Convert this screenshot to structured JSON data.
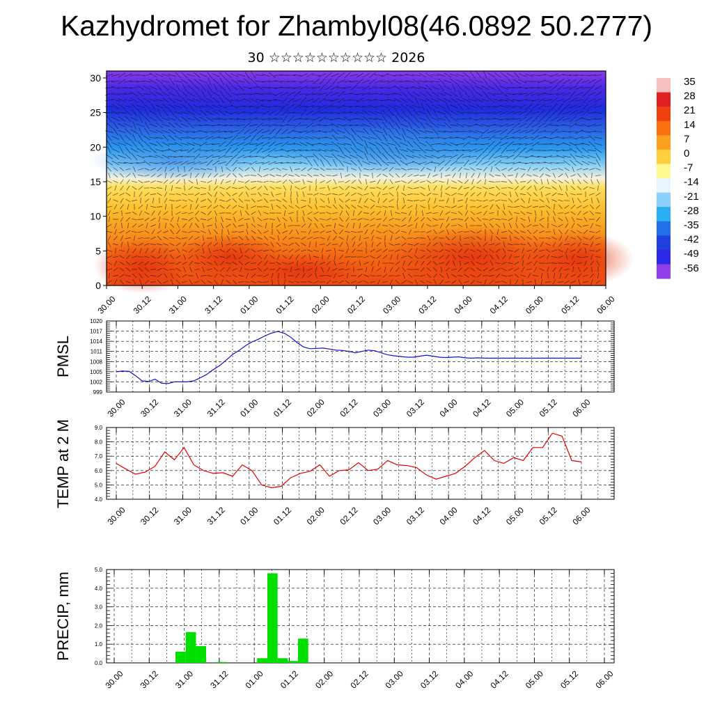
{
  "title": "Kazhydromet for Zhambyl08(46.0892 50.2777)",
  "subtitle": "30 ☆☆☆☆☆☆☆☆☆☆ 2026",
  "time_ticks": [
    "30.00",
    "30.12",
    "31.00",
    "31.12",
    "01.00",
    "01.12",
    "02.00",
    "02.12",
    "03.00",
    "03.12",
    "04.00",
    "04.12",
    "05.00",
    "05.12",
    "06.00"
  ],
  "colors": {
    "pmsl": "#1010cc",
    "temp": "#e00000",
    "precip": "#00e000"
  },
  "chart_data": [
    {
      "type": "heatmap",
      "name": "cross-section",
      "ylabel": "",
      "ylim": [
        0,
        31
      ],
      "yticks": [
        "0",
        "5",
        "10",
        "15",
        "20",
        "25",
        "30"
      ],
      "colorbar_labels": [
        "35",
        "28",
        "21",
        "14",
        "7",
        "0",
        "-7",
        "-14",
        "-21",
        "-28",
        "-35",
        "-42",
        "-49",
        "-56"
      ],
      "colorbar_colors": [
        "#f4c0c0",
        "#e02020",
        "#f04010",
        "#f87010",
        "#fca020",
        "#fed040",
        "#fff890",
        "#e8f4ff",
        "#8ad0f8",
        "#2ab0f0",
        "#2070e8",
        "#2040e0",
        "#3028e8",
        "#9040e8"
      ],
      "grid": false
    },
    {
      "type": "line",
      "name": "pmsl",
      "ylabel": "PMSL",
      "ylim": [
        999,
        1020
      ],
      "yticks": [
        "999",
        "1002",
        "1005",
        "1008",
        "1011",
        "1014",
        "1017",
        "1020"
      ],
      "x": [
        0,
        2,
        4,
        6,
        8,
        10,
        12,
        14,
        16,
        18,
        20,
        22,
        24,
        26,
        28,
        30,
        32,
        34,
        36,
        38,
        40,
        42,
        44,
        46,
        48,
        50,
        52,
        54,
        56,
        58,
        60,
        62,
        64,
        66,
        68,
        70,
        72,
        74,
        76,
        78,
        80,
        82,
        84,
        86,
        88,
        90,
        92,
        94,
        96,
        98,
        100,
        102,
        104,
        106,
        108,
        110,
        112,
        114,
        116,
        118,
        120,
        122,
        124,
        126,
        128,
        130,
        132,
        134,
        136,
        138,
        140,
        142,
        144
      ],
      "values": [
        1005,
        1005.2,
        1005.1,
        1003.8,
        1002.3,
        1002.1,
        1002.8,
        1001.6,
        1001.5,
        1002,
        1002,
        1002,
        1002.3,
        1003.2,
        1004.2,
        1005.6,
        1006.8,
        1008.4,
        1010.1,
        1011.3,
        1012.7,
        1013.8,
        1014.6,
        1015.6,
        1016.4,
        1016.9,
        1016.4,
        1015.2,
        1013.6,
        1012.3,
        1011.8,
        1011.9,
        1012,
        1011.7,
        1011.4,
        1011.3,
        1011,
        1010.6,
        1011,
        1011.4,
        1011.2,
        1010.6,
        1010,
        1009.7,
        1009.5,
        1009.3,
        1009.3,
        1009.6,
        1009.9,
        1009.6,
        1009.3,
        1009.2,
        1009.3,
        1009.4,
        1009.1,
        1009,
        1009.1,
        1009,
        1009,
        1009,
        1009,
        1009,
        1009,
        1009,
        1009,
        1009,
        1009,
        1009,
        1009,
        1009,
        1009,
        1009,
        1009
      ],
      "grid": true
    },
    {
      "type": "line",
      "name": "temp",
      "ylabel": "TEMP at 2 M",
      "ylim": [
        4.0,
        9.0
      ],
      "yticks": [
        "4.0",
        "5.0",
        "6.0",
        "7.0",
        "8.0",
        "9.0"
      ],
      "x": [
        0,
        3,
        6,
        9,
        12,
        15,
        18,
        21,
        24,
        27,
        30,
        33,
        36,
        39,
        42,
        45,
        48,
        51,
        54,
        57,
        60,
        63,
        66,
        69,
        72,
        75,
        78,
        81,
        84,
        87,
        90,
        93,
        96,
        99,
        102,
        105,
        108,
        111,
        114,
        117,
        120,
        123,
        126,
        129,
        132,
        135,
        138,
        141,
        144
      ],
      "values": [
        6.5,
        6.1,
        5.75,
        5.9,
        6.3,
        7.3,
        6.75,
        7.6,
        6.4,
        6.0,
        5.8,
        5.85,
        5.6,
        6.4,
        6.0,
        5.0,
        4.8,
        4.9,
        5.5,
        5.8,
        5.95,
        6.4,
        5.6,
        6.0,
        6.05,
        6.55,
        6.0,
        6.1,
        6.7,
        6.4,
        6.35,
        6.2,
        5.7,
        5.4,
        5.6,
        5.8,
        6.3,
        6.9,
        7.4,
        6.7,
        6.5,
        6.9,
        6.7,
        7.6,
        7.6,
        8.6,
        8.4,
        6.7,
        6.6
      ],
      "grid": true
    },
    {
      "type": "bar",
      "name": "precip",
      "ylabel": "PRECIP, mm",
      "ylim": [
        0,
        5.0
      ],
      "yticks": [
        "0.0",
        "1.0",
        "2.0",
        "3.0",
        "4.0",
        "5.0"
      ],
      "bars": [
        {
          "x0": 18,
          "x1": 21,
          "value": 0.6
        },
        {
          "x0": 21,
          "x1": 24,
          "value": 1.65
        },
        {
          "x0": 24,
          "x1": 27,
          "value": 0.9
        },
        {
          "x0": 30,
          "x1": 33,
          "value": 0.05
        },
        {
          "x0": 42,
          "x1": 45,
          "value": 0.25
        },
        {
          "x0": 45,
          "x1": 48,
          "value": 4.8
        },
        {
          "x0": 48,
          "x1": 51,
          "value": 0.25
        },
        {
          "x0": 51,
          "x1": 54,
          "value": 0.1
        },
        {
          "x0": 54,
          "x1": 57,
          "value": 1.3
        }
      ],
      "grid": true
    }
  ]
}
